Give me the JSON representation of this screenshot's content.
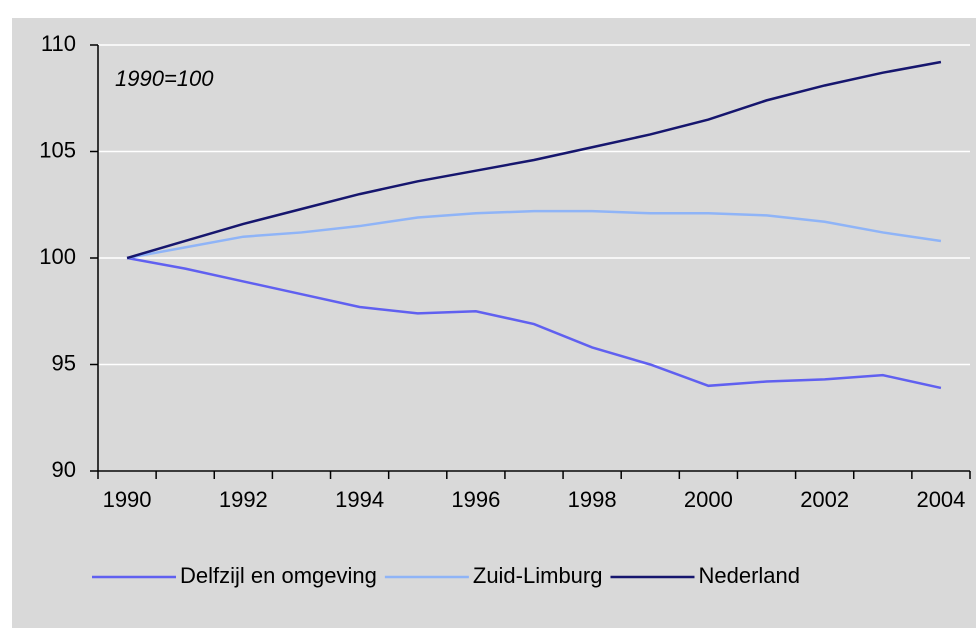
{
  "chart_data": {
    "type": "line",
    "annotation": "1990=100",
    "categories": [
      "1990",
      null,
      "1992",
      null,
      "1994",
      null,
      "1996",
      null,
      "1998",
      null,
      "2000",
      null,
      "2002",
      null,
      "2004"
    ],
    "series": [
      {
        "name": "Delfzijl en omgeving",
        "color": "#6060f0",
        "values": [
          100,
          99.5,
          98.9,
          98.3,
          97.7,
          97.4,
          97.5,
          96.9,
          95.8,
          95.0,
          94.0,
          94.2,
          94.3,
          94.5,
          93.9
        ]
      },
      {
        "name": "Zuid-Limburg",
        "color": "#8fb4f7",
        "values": [
          100,
          100.5,
          101.0,
          101.2,
          101.5,
          101.9,
          102.1,
          102.2,
          102.2,
          102.1,
          102.1,
          102.0,
          101.7,
          101.2,
          100.8
        ]
      },
      {
        "name": "Nederland",
        "color": "#16166e",
        "values": [
          100,
          100.8,
          101.6,
          102.3,
          103.0,
          103.6,
          104.1,
          104.6,
          105.2,
          105.8,
          106.5,
          107.4,
          108.1,
          108.7,
          109.2
        ]
      }
    ],
    "ylim": [
      90,
      110
    ],
    "yticks": [
      90,
      95,
      100,
      105,
      110
    ],
    "grid": true
  }
}
